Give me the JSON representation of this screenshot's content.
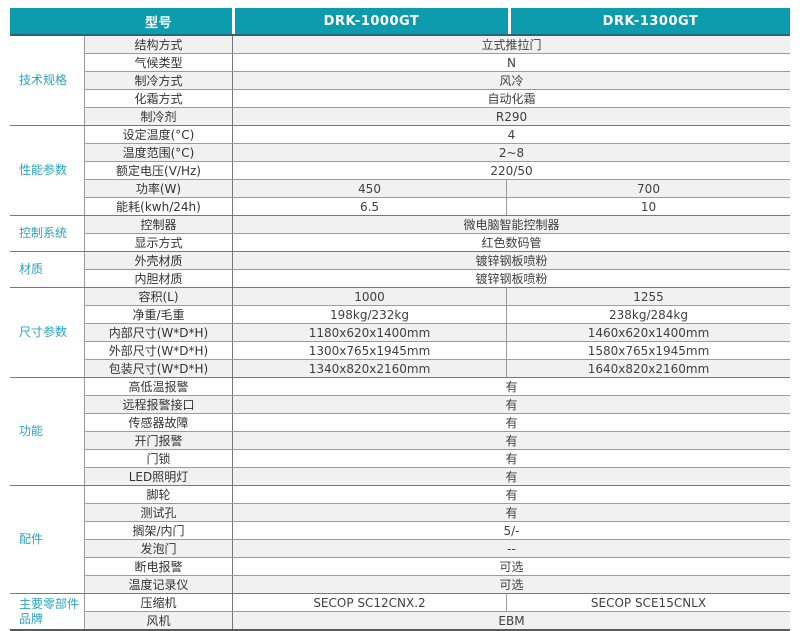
{
  "header": {
    "model_label": "型号",
    "models": [
      "DRK-1000GT",
      "DRK-1300GT"
    ]
  },
  "colors": {
    "header_bg": "#0d9bae",
    "header_text": "#ffffff",
    "group_label_text": "#2ba4bc",
    "row_stripe": "#f1f1f1",
    "row_line": "#9c9c9c",
    "group_line": "#787878"
  },
  "groups": [
    {
      "label": "技术规格",
      "rows": [
        {
          "param": "结构方式",
          "values": [
            "立式推拉门"
          ]
        },
        {
          "param": "气候类型",
          "values": [
            "N"
          ]
        },
        {
          "param": "制冷方式",
          "values": [
            "风冷"
          ]
        },
        {
          "param": "化霜方式",
          "values": [
            "自动化霜"
          ]
        },
        {
          "param": "制冷剂",
          "values": [
            "R290"
          ]
        }
      ]
    },
    {
      "label": "性能参数",
      "rows": [
        {
          "param": "设定温度(°C)",
          "values": [
            "4"
          ]
        },
        {
          "param": "温度范围(°C)",
          "values": [
            "2~8"
          ]
        },
        {
          "param": "额定电压(V/Hz)",
          "values": [
            "220/50"
          ]
        },
        {
          "param": "功率(W)",
          "values": [
            "450",
            "700"
          ]
        },
        {
          "param": "能耗(kwh/24h)",
          "values": [
            "6.5",
            "10"
          ]
        }
      ]
    },
    {
      "label": "控制系统",
      "rows": [
        {
          "param": "控制器",
          "values": [
            "微电脑智能控制器"
          ]
        },
        {
          "param": "显示方式",
          "values": [
            "红色数码管"
          ]
        }
      ]
    },
    {
      "label": "材质",
      "rows": [
        {
          "param": "外壳材质",
          "values": [
            "镀锌钢板喷粉"
          ]
        },
        {
          "param": "内胆材质",
          "values": [
            "镀锌钢板喷粉"
          ]
        }
      ]
    },
    {
      "label": "尺寸参数",
      "rows": [
        {
          "param": "容积(L)",
          "values": [
            "1000",
            "1255"
          ]
        },
        {
          "param": "净重/毛重",
          "values": [
            "198kg/232kg",
            "238kg/284kg"
          ]
        },
        {
          "param": "内部尺寸(W*D*H)",
          "values": [
            "1180x620x1400mm",
            "1460x620x1400mm"
          ]
        },
        {
          "param": "外部尺寸(W*D*H)",
          "values": [
            "1300x765x1945mm",
            "1580x765x1945mm"
          ]
        },
        {
          "param": "包装尺寸(W*D*H)",
          "values": [
            "1340x820x2160mm",
            "1640x820x2160mm"
          ]
        }
      ]
    },
    {
      "label": "功能",
      "rows": [
        {
          "param": "高低温报警",
          "values": [
            "有"
          ]
        },
        {
          "param": "远程报警接口",
          "values": [
            "有"
          ]
        },
        {
          "param": "传感器故障",
          "values": [
            "有"
          ]
        },
        {
          "param": "开门报警",
          "values": [
            "有"
          ]
        },
        {
          "param": "门锁",
          "values": [
            "有"
          ]
        },
        {
          "param": "LED照明灯",
          "values": [
            "有"
          ]
        }
      ]
    },
    {
      "label": "配件",
      "rows": [
        {
          "param": "脚轮",
          "values": [
            "有"
          ]
        },
        {
          "param": "测试孔",
          "values": [
            "有"
          ]
        },
        {
          "param": "搁架/内门",
          "values": [
            "5/-"
          ]
        },
        {
          "param": "发泡门",
          "values": [
            "--"
          ]
        },
        {
          "param": "断电报警",
          "values": [
            "可选"
          ]
        },
        {
          "param": "温度记录仪",
          "values": [
            "可选"
          ]
        }
      ]
    },
    {
      "label": "主要零部件品牌",
      "rows": [
        {
          "param": "压缩机",
          "values": [
            "SECOP SC12CNX.2",
            "SECOP SCE15CNLX"
          ]
        },
        {
          "param": "风机",
          "values": [
            "EBM"
          ]
        }
      ]
    }
  ]
}
